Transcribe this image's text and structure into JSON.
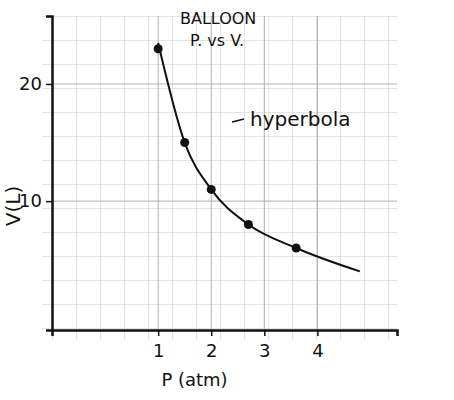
{
  "chart_data": {
    "type": "scatter",
    "title": "BALLOON",
    "subtitle": "P. vs V.",
    "x_label": "P (atm)",
    "y_label": "V(L)",
    "annotations": [
      "hyperbola"
    ],
    "series": [
      {
        "type": "scatter",
        "marker": "circle",
        "color": "#111111",
        "x": [
          1,
          1.5,
          2,
          2.7,
          3.6
        ],
        "values": [
          23,
          15,
          11,
          8,
          6
        ]
      },
      {
        "type": "line",
        "line_style": "solid",
        "color": "#111111",
        "x": [
          1,
          1.5,
          2,
          2.7,
          3.6,
          4.8
        ],
        "values": [
          23.5,
          15,
          11,
          8,
          6,
          4
        ]
      }
    ],
    "xlim": [
      -1,
      5.5
    ],
    "ylim": [
      -1,
      25.8
    ],
    "xticks": [
      1,
      2,
      3,
      4
    ],
    "yticks": [
      10,
      20
    ],
    "grid": true
  }
}
